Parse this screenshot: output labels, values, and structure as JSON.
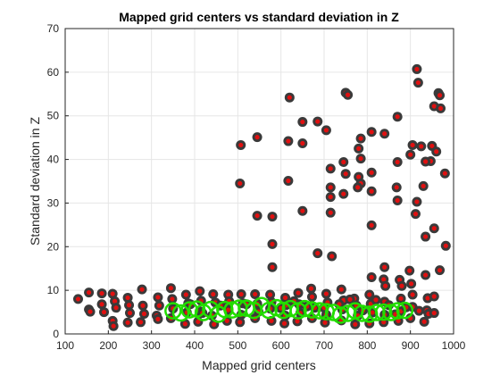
{
  "chart_data": {
    "type": "scatter",
    "title": "Mapped grid centers vs standard deviation in Z",
    "xlabel": "Mapped grid centers",
    "ylabel": "Standard deviation in Z",
    "xlim": [
      100,
      1000
    ],
    "ylim": [
      0,
      70
    ],
    "xticks": [
      100,
      200,
      300,
      400,
      500,
      600,
      700,
      800,
      900,
      1000
    ],
    "yticks": [
      0,
      10,
      20,
      30,
      40,
      50,
      60,
      70
    ],
    "grid": true,
    "legend": "none",
    "colors": {
      "marker_edge": "#3a3a3a",
      "marker_fill": "#e01010",
      "ring": "#22dd00",
      "axis": "#262626",
      "grid": "#e6e6e6"
    },
    "series": [
      {
        "marker": "dark circle with red center",
        "points": [
          [
            507,
            43.3
          ],
          [
            545,
            45.1
          ],
          [
            620,
            54.2
          ],
          [
            650,
            48.6
          ],
          [
            685,
            48.7
          ],
          [
            705,
            46.7
          ],
          [
            750,
            55.3
          ],
          [
            755,
            54.8
          ],
          [
            785,
            44.8
          ],
          [
            810,
            46.3
          ],
          [
            840,
            45.9
          ],
          [
            915,
            60.7
          ],
          [
            918,
            57.6
          ],
          [
            965,
            55.2
          ],
          [
            968,
            54.7
          ],
          [
            955,
            52.2
          ],
          [
            950,
            43.1
          ],
          [
            947,
            39.6
          ],
          [
            960,
            41.8
          ],
          [
            935,
            39.5
          ],
          [
            925,
            43.0
          ],
          [
            905,
            43.3
          ],
          [
            870,
            49.8
          ],
          [
            900,
            41.1
          ],
          [
            870,
            39.4
          ],
          [
            868,
            33.6
          ],
          [
            870,
            30.6
          ],
          [
            915,
            30.3
          ],
          [
            912,
            27.5
          ],
          [
            930,
            33.9
          ],
          [
            935,
            22.3
          ],
          [
            955,
            24.2
          ],
          [
            970,
            51.7
          ],
          [
            980,
            36.8
          ],
          [
            982,
            20.2
          ],
          [
            968,
            14.6
          ],
          [
            505,
            34.5
          ],
          [
            545,
            27.1
          ],
          [
            580,
            26.9
          ],
          [
            580,
            20.6
          ],
          [
            580,
            15.3
          ],
          [
            617,
            44.2
          ],
          [
            617,
            35.1
          ],
          [
            650,
            43.7
          ],
          [
            650,
            28.2
          ],
          [
            685,
            18.5
          ],
          [
            718,
            17.8
          ],
          [
            715,
            37.9
          ],
          [
            715,
            33.6
          ],
          [
            715,
            31.4
          ],
          [
            715,
            27.8
          ],
          [
            745,
            39.4
          ],
          [
            745,
            32.1
          ],
          [
            750,
            36.7
          ],
          [
            780,
            42.5
          ],
          [
            785,
            40.2
          ],
          [
            780,
            36.0
          ],
          [
            785,
            34.5
          ],
          [
            778,
            33.6
          ],
          [
            810,
            37.0
          ],
          [
            810,
            32.7
          ],
          [
            810,
            24.9
          ],
          [
            810,
            13.0
          ]
        ]
      },
      {
        "marker": "dark circle with red center",
        "points": [
          [
            130,
            8.0
          ],
          [
            155,
            9.5
          ],
          [
            155,
            5.6
          ],
          [
            158,
            5.1
          ],
          [
            185,
            9.3
          ],
          [
            185,
            6.8
          ],
          [
            190,
            5.0
          ],
          [
            210,
            9.2
          ],
          [
            215,
            7.5
          ],
          [
            218,
            6.0
          ],
          [
            210,
            3.0
          ],
          [
            212,
            1.8
          ],
          [
            245,
            8.3
          ],
          [
            248,
            6.6
          ],
          [
            250,
            4.8
          ],
          [
            245,
            2.6
          ],
          [
            278,
            10.2
          ],
          [
            280,
            6.5
          ],
          [
            283,
            4.6
          ],
          [
            275,
            2.7
          ],
          [
            315,
            8.4
          ],
          [
            318,
            6.5
          ],
          [
            312,
            4.2
          ],
          [
            315,
            3.4
          ],
          [
            345,
            10.5
          ],
          [
            348,
            8.0
          ],
          [
            350,
            5.8
          ],
          [
            345,
            3.6
          ],
          [
            380,
            9.0
          ],
          [
            385,
            7.0
          ],
          [
            382,
            4.9
          ],
          [
            378,
            2.3
          ],
          [
            412,
            9.8
          ],
          [
            415,
            7.6
          ],
          [
            412,
            5.2
          ],
          [
            418,
            4.8
          ],
          [
            408,
            2.8
          ],
          [
            443,
            9.1
          ],
          [
            448,
            7.2
          ],
          [
            440,
            4.2
          ],
          [
            445,
            2.2
          ],
          [
            478,
            9.0
          ],
          [
            480,
            7.5
          ],
          [
            478,
            5.5
          ],
          [
            475,
            3.0
          ],
          [
            508,
            9.1
          ],
          [
            512,
            7.0
          ],
          [
            508,
            4.4
          ],
          [
            505,
            2.7
          ],
          [
            540,
            9.1
          ],
          [
            545,
            6.9
          ],
          [
            548,
            5.1
          ],
          [
            540,
            3.6
          ],
          [
            575,
            9.0
          ],
          [
            578,
            7.3
          ],
          [
            575,
            5.8
          ],
          [
            578,
            3.0
          ],
          [
            610,
            8.3
          ],
          [
            612,
            6.6
          ],
          [
            610,
            4.2
          ],
          [
            608,
            2.4
          ],
          [
            640,
            9.4
          ],
          [
            642,
            6.8
          ],
          [
            645,
            4.8
          ],
          [
            638,
            2.9
          ],
          [
            670,
            10.4
          ],
          [
            672,
            8.5
          ],
          [
            678,
            6.0
          ],
          [
            672,
            3.6
          ],
          [
            705,
            9.2
          ],
          [
            708,
            7.2
          ],
          [
            705,
            4.4
          ],
          [
            702,
            2.6
          ],
          [
            740,
            10.2
          ],
          [
            745,
            7.7
          ],
          [
            742,
            5.6
          ],
          [
            740,
            3.1
          ],
          [
            770,
            8.1
          ],
          [
            775,
            6.5
          ],
          [
            778,
            4.2
          ],
          [
            772,
            2.2
          ],
          [
            805,
            9.0
          ],
          [
            808,
            6.9
          ],
          [
            812,
            4.9
          ],
          [
            805,
            2.4
          ],
          [
            838,
            12.5
          ],
          [
            840,
            15.3
          ],
          [
            842,
            11.0
          ],
          [
            840,
            7.4
          ],
          [
            840,
            4.4
          ],
          [
            838,
            2.7
          ],
          [
            875,
            12.4
          ],
          [
            880,
            11.0
          ],
          [
            878,
            8.1
          ],
          [
            878,
            5.2
          ],
          [
            872,
            3.0
          ],
          [
            898,
            14.5
          ],
          [
            902,
            11.5
          ],
          [
            905,
            9.0
          ],
          [
            905,
            6.2
          ],
          [
            900,
            3.6
          ],
          [
            935,
            13.5
          ],
          [
            940,
            8.2
          ],
          [
            938,
            5.4
          ],
          [
            942,
            4.6
          ],
          [
            932,
            2.8
          ],
          [
            955,
            8.6
          ],
          [
            955,
            4.8
          ],
          [
            390,
            6.8
          ],
          [
            460,
            6.5
          ],
          [
            520,
            6.8
          ],
          [
            600,
            5.9
          ],
          [
            630,
            7.5
          ],
          [
            660,
            6.3
          ],
          [
            700,
            6.0
          ],
          [
            735,
            6.8
          ],
          [
            760,
            7.9
          ],
          [
            790,
            5.4
          ],
          [
            820,
            7.8
          ],
          [
            850,
            6.6
          ],
          [
            865,
            4.5
          ],
          [
            890,
            6.1
          ],
          [
            920,
            5.3
          ]
        ]
      },
      {
        "marker": "green ring",
        "points": [
          [
            350,
            5.3
          ],
          [
            368,
            4.8
          ],
          [
            388,
            5.5
          ],
          [
            405,
            5.7
          ],
          [
            420,
            4.9
          ],
          [
            437,
            5.6
          ],
          [
            455,
            4.5
          ],
          [
            470,
            5.6
          ],
          [
            487,
            5.5
          ],
          [
            503,
            5.9
          ],
          [
            520,
            5.9
          ],
          [
            537,
            5.4
          ],
          [
            555,
            6.5
          ],
          [
            572,
            5.4
          ],
          [
            590,
            6.0
          ],
          [
            605,
            5.4
          ],
          [
            622,
            5.8
          ],
          [
            640,
            5.3
          ],
          [
            655,
            5.8
          ],
          [
            672,
            5.5
          ],
          [
            690,
            5.3
          ],
          [
            705,
            5.1
          ],
          [
            722,
            4.9
          ],
          [
            738,
            4.3
          ],
          [
            755,
            4.7
          ],
          [
            772,
            5.3
          ],
          [
            788,
            4.7
          ],
          [
            805,
            4.5
          ],
          [
            822,
            4.9
          ],
          [
            838,
            5.0
          ],
          [
            855,
            4.9
          ],
          [
            870,
            5.3
          ],
          [
            887,
            5.4
          ]
        ]
      }
    ]
  }
}
